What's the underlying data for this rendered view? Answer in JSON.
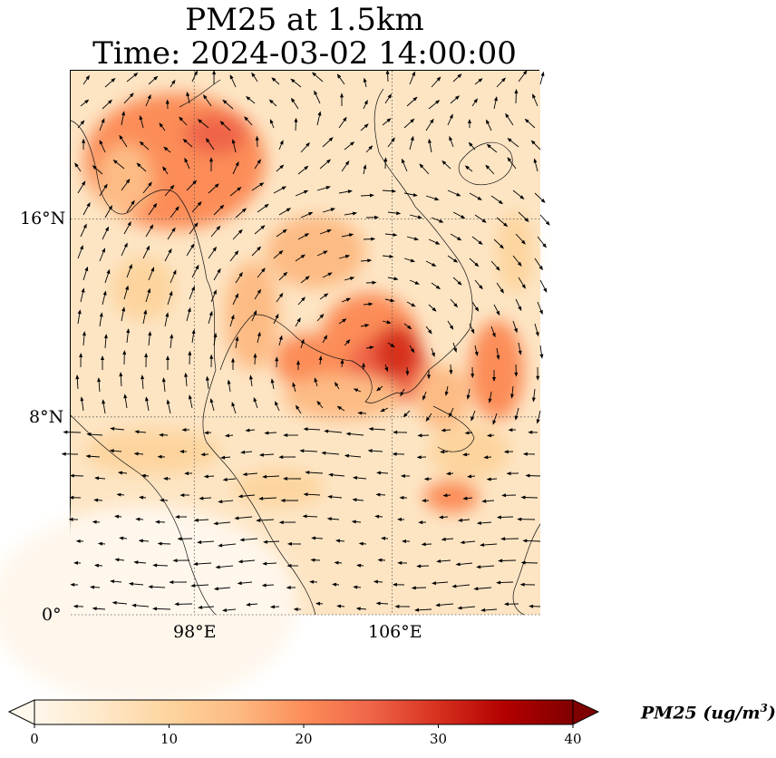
{
  "title_line1": "PM25 at 1.5km",
  "title_line2": "Time: 2024-03-02 14:00:00",
  "map": {
    "extent": {
      "lon_min": 93,
      "lon_max": 112,
      "lat_min": 0,
      "lat_max": 22
    },
    "lat_ticks": [
      {
        "value": 0,
        "label": "0°"
      },
      {
        "value": 8,
        "label": "8°N"
      },
      {
        "value": 16,
        "label": "16°N"
      }
    ],
    "lon_ticks": [
      {
        "value": 98,
        "label": "98°E"
      },
      {
        "value": 106,
        "label": "106°E"
      }
    ],
    "gridlines": "dotted",
    "field": "PM2.5 concentration",
    "wind_vectors": "quiver"
  },
  "colorbar": {
    "label": "PM25 (ug/m",
    "label_exp": "3",
    "label_close": ")",
    "min": 0,
    "max": 40,
    "ticks": [
      "0",
      "10",
      "20",
      "30",
      "40"
    ],
    "extend": "both",
    "colormap": "OrRd",
    "colors": [
      "#fff7ec",
      "#fee8c8",
      "#fdd49e",
      "#fdbb84",
      "#fc8d59",
      "#ef6548",
      "#d7301f",
      "#b30000",
      "#7f0000"
    ]
  }
}
